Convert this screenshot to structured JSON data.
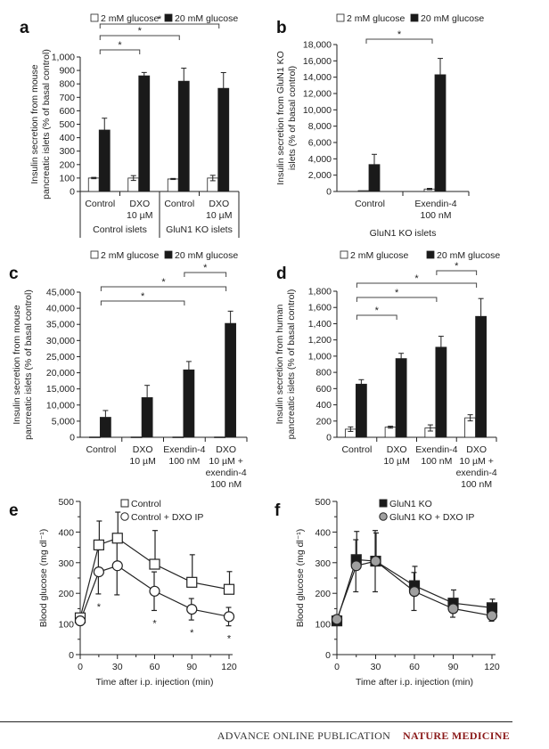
{
  "footer": {
    "publication": "ADVANCE ONLINE PUBLICATION",
    "journal": "NATURE MEDICINE",
    "journal_color": "#8b1a1a"
  },
  "chart_data": [
    {
      "id": "a",
      "panel_label": "a",
      "type": "bar",
      "legend": [
        "2 mM glucose",
        "20 mM glucose"
      ],
      "legend_placement": "top",
      "ylabel": [
        "Insulin secretion from mouse",
        "pancreatic islets (% of basal control)"
      ],
      "ylim": [
        0,
        1000
      ],
      "yticks": [
        0,
        100,
        200,
        300,
        400,
        500,
        600,
        700,
        800,
        900,
        1000
      ],
      "ytick_labels": [
        "0",
        "100",
        "200",
        "300",
        "400",
        "500",
        "600",
        "700",
        "800",
        "900",
        "1,000"
      ],
      "categories": [
        [
          "Control"
        ],
        [
          "DXO",
          "10 µM"
        ],
        [
          "Control"
        ],
        [
          "DXO",
          "10 µM"
        ]
      ],
      "group_labels": [
        {
          "label": "Control islets",
          "span": [
            0,
            1
          ]
        },
        {
          "label": "GluN1 KO islets",
          "span": [
            2,
            3
          ]
        }
      ],
      "series": [
        {
          "name": "2 mM glucose",
          "fill": "#ffffff",
          "values": [
            100,
            100,
            93,
            100
          ],
          "errors": [
            5,
            18,
            4,
            20
          ]
        },
        {
          "name": "20 mM glucose",
          "fill": "#1a1a1a",
          "values": [
            457,
            860,
            820,
            767
          ],
          "errors": [
            88,
            25,
            97,
            117
          ]
        }
      ],
      "significance": [
        {
          "from": 0,
          "to": 1,
          "label": "*"
        },
        {
          "from": 0,
          "to": 2,
          "label": "*"
        },
        {
          "from": 0,
          "to": 3,
          "label": "*"
        }
      ]
    },
    {
      "id": "b",
      "panel_label": "b",
      "type": "bar",
      "legend": [
        "2 mM glucose",
        "20 mM glucose"
      ],
      "legend_placement": "top",
      "ylabel": [
        "Insulin secretion from GluN1 KO",
        "islets (% of basal control)"
      ],
      "ylim": [
        0,
        18000
      ],
      "yticks": [
        0,
        2000,
        4000,
        6000,
        8000,
        10000,
        12000,
        14000,
        16000,
        18000
      ],
      "ytick_labels": [
        "0",
        "2,000",
        "4,000",
        "6,000",
        "8,000",
        "10,000",
        "12,000",
        "14,000",
        "16,000",
        "18,000"
      ],
      "categories": [
        [
          "Control"
        ],
        [
          "Exendin-4",
          "100 nM"
        ]
      ],
      "group_labels": [
        {
          "label": "GluN1 KO islets",
          "span": [
            0,
            1
          ]
        }
      ],
      "series": [
        {
          "name": "2 mM glucose",
          "fill": "#ffffff",
          "values": [
            100,
            300
          ],
          "errors": [
            0,
            80
          ]
        },
        {
          "name": "20 mM glucose",
          "fill": "#1a1a1a",
          "values": [
            3300,
            14300
          ],
          "errors": [
            1250,
            2000
          ]
        }
      ],
      "significance": [
        {
          "from": 0,
          "to": 1,
          "label": "*"
        }
      ]
    },
    {
      "id": "c",
      "panel_label": "c",
      "type": "bar",
      "legend": [
        "2 mM glucose",
        "20 mM glucose"
      ],
      "legend_placement": "top",
      "ylabel": [
        "Insulin secretion from mouse",
        "pancreatic islets (% of basal control)"
      ],
      "ylim": [
        0,
        45000
      ],
      "yticks": [
        0,
        5000,
        10000,
        15000,
        20000,
        25000,
        30000,
        35000,
        40000,
        45000
      ],
      "ytick_labels": [
        "0",
        "5,000",
        "10,000",
        "15,000",
        "20,000",
        "25,000",
        "30,000",
        "35,000",
        "40,000",
        "45,000"
      ],
      "categories": [
        [
          "Control"
        ],
        [
          "DXO",
          "10 µM"
        ],
        [
          "Exendin-4",
          "100 nM"
        ],
        [
          "DXO",
          "10 µM +",
          "exendin-4",
          "100 nM"
        ]
      ],
      "group_labels": [],
      "series": [
        {
          "name": "2 mM glucose",
          "fill": "#ffffff",
          "values": [
            100,
            100,
            100,
            100
          ],
          "errors": [
            0,
            0,
            0,
            0
          ]
        },
        {
          "name": "20 mM glucose",
          "fill": "#1a1a1a",
          "values": [
            6200,
            12300,
            20900,
            35300
          ],
          "errors": [
            2100,
            3800,
            2600,
            3800
          ]
        }
      ],
      "significance": [
        {
          "from": 0,
          "to": 2,
          "label": "*"
        },
        {
          "from": 0,
          "to": 3,
          "label": "*"
        },
        {
          "from": 2,
          "to": 3,
          "label": "*"
        }
      ]
    },
    {
      "id": "d",
      "panel_label": "d",
      "type": "bar",
      "legend": [
        "2 mM glucose",
        "20 mM glucose"
      ],
      "legend_placement": "top",
      "ylabel": [
        "Insulin secretion from human",
        "pancreatic islets (% of basal control)"
      ],
      "ylim": [
        0,
        1800
      ],
      "yticks": [
        0,
        200,
        400,
        600,
        800,
        1000,
        1200,
        1400,
        1600,
        1800
      ],
      "ytick_labels": [
        "0",
        "200",
        "400",
        "600",
        "800",
        "1,000",
        "1,200",
        "1,400",
        "1,600",
        "1,800"
      ],
      "categories": [
        [
          "Control"
        ],
        [
          "DXO",
          "10 µM"
        ],
        [
          "Exendin-4",
          "100 nM"
        ],
        [
          "DXO",
          "10 µM +",
          "exendin-4",
          "100 nM"
        ]
      ],
      "group_labels": [],
      "series": [
        {
          "name": "2 mM glucose",
          "fill": "#ffffff",
          "values": [
            100,
            125,
            115,
            240
          ],
          "errors": [
            28,
            12,
            38,
            38
          ]
        },
        {
          "name": "20 mM glucose",
          "fill": "#1a1a1a",
          "values": [
            655,
            970,
            1110,
            1490
          ],
          "errors": [
            55,
            65,
            135,
            220
          ]
        }
      ],
      "significance": [
        {
          "from": 0,
          "to": 1,
          "label": "*"
        },
        {
          "from": 0,
          "to": 2,
          "label": "*"
        },
        {
          "from": 0,
          "to": 3,
          "label": "*"
        },
        {
          "from": 2,
          "to": 3,
          "label": "*"
        }
      ]
    },
    {
      "id": "e",
      "panel_label": "e",
      "type": "line",
      "xlabel": "Time after i.p. injection (min)",
      "ylabel": "Blood glucose (mg dl⁻¹)",
      "xlim": [
        0,
        120
      ],
      "ylim": [
        0,
        500
      ],
      "xticks": [
        0,
        30,
        60,
        90,
        120
      ],
      "yticks": [
        0,
        100,
        200,
        300,
        400,
        500
      ],
      "x": [
        0,
        15,
        30,
        60,
        90,
        120
      ],
      "legend_placement": "top-right",
      "series": [
        {
          "name": "Control",
          "marker": "square",
          "fill": "#ffffff",
          "values": [
            120,
            358,
            380,
            295,
            236,
            213
          ],
          "errors": [
            12,
            78,
            85,
            110,
            90,
            58
          ]
        },
        {
          "name": "Control + DXO IP",
          "marker": "circle",
          "fill": "#ffffff",
          "values": [
            110,
            270,
            290,
            207,
            148,
            124
          ],
          "errors": [
            12,
            72,
            95,
            63,
            35,
            30
          ]
        }
      ],
      "significance_x": [
        15,
        60,
        90,
        120
      ],
      "significance_label": "*"
    },
    {
      "id": "f",
      "panel_label": "f",
      "type": "line",
      "xlabel": "Time after i.p. injection (min)",
      "ylabel": "Blood glucose (mg dl⁻¹)",
      "xlim": [
        0,
        120
      ],
      "ylim": [
        0,
        500
      ],
      "xticks": [
        0,
        30,
        60,
        90,
        120
      ],
      "yticks": [
        0,
        100,
        200,
        300,
        400,
        500
      ],
      "x": [
        0,
        15,
        30,
        60,
        90,
        120
      ],
      "legend_placement": "top-right",
      "series": [
        {
          "name": "GluN1 KO",
          "marker": "square",
          "fill": "#1a1a1a",
          "values": [
            110,
            310,
            305,
            225,
            168,
            153
          ],
          "errors": [
            8,
            92,
            92,
            63,
            43,
            28
          ]
        },
        {
          "name": "GluN1 KO + DXO IP",
          "marker": "circle",
          "fill": "#a0a0a0",
          "values": [
            115,
            290,
            305,
            206,
            150,
            127
          ],
          "errors": [
            8,
            85,
            100,
            62,
            28,
            18
          ]
        }
      ],
      "significance_x": [],
      "significance_label": "*"
    }
  ]
}
